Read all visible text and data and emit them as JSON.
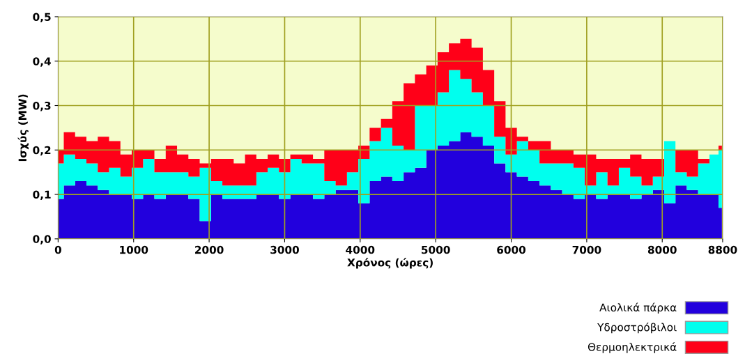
{
  "chart_data": {
    "type": "area",
    "stacked": true,
    "xlabel": "Χρόνος (ώρες)",
    "ylabel": "Ισχύς (MW)",
    "x": [
      0,
      150,
      300,
      450,
      600,
      750,
      900,
      1050,
      1200,
      1350,
      1500,
      1650,
      1800,
      1950,
      2100,
      2250,
      2400,
      2550,
      2700,
      2850,
      3000,
      3150,
      3300,
      3450,
      3600,
      3750,
      3900,
      4050,
      4200,
      4350,
      4500,
      4650,
      4800,
      4950,
      5100,
      5250,
      5400,
      5550,
      5700,
      5850,
      6000,
      6150,
      6300,
      6450,
      6600,
      6750,
      6900,
      7050,
      7200,
      7350,
      7500,
      7650,
      7800,
      7950,
      8100,
      8250,
      8400,
      8550,
      8700,
      8790
    ],
    "series": [
      {
        "name": "Αιολικά πάρκα",
        "color": "#2200dd",
        "values": [
          0.09,
          0.12,
          0.13,
          0.12,
          0.11,
          0.1,
          0.1,
          0.09,
          0.1,
          0.09,
          0.1,
          0.1,
          0.09,
          0.04,
          0.1,
          0.09,
          0.09,
          0.09,
          0.1,
          0.1,
          0.09,
          0.1,
          0.1,
          0.09,
          0.1,
          0.11,
          0.11,
          0.08,
          0.13,
          0.14,
          0.13,
          0.15,
          0.16,
          0.2,
          0.21,
          0.22,
          0.24,
          0.23,
          0.21,
          0.17,
          0.15,
          0.14,
          0.13,
          0.12,
          0.11,
          0.1,
          0.09,
          0.1,
          0.09,
          0.1,
          0.1,
          0.09,
          0.1,
          0.11,
          0.08,
          0.12,
          0.11,
          0.1,
          0.1,
          0.07
        ]
      },
      {
        "name": "Υδροστρόβιλοι",
        "color": "#00ffee",
        "values": [
          0.08,
          0.07,
          0.05,
          0.05,
          0.04,
          0.06,
          0.04,
          0.07,
          0.08,
          0.06,
          0.05,
          0.05,
          0.05,
          0.12,
          0.03,
          0.03,
          0.03,
          0.03,
          0.05,
          0.06,
          0.06,
          0.08,
          0.07,
          0.08,
          0.03,
          0.01,
          0.04,
          0.1,
          0.09,
          0.11,
          0.08,
          0.05,
          0.14,
          0.1,
          0.12,
          0.16,
          0.12,
          0.1,
          0.09,
          0.06,
          0.04,
          0.08,
          0.07,
          0.05,
          0.06,
          0.07,
          0.07,
          0.02,
          0.06,
          0.02,
          0.06,
          0.05,
          0.02,
          0.03,
          0.14,
          0.03,
          0.03,
          0.07,
          0.09,
          0.13
        ]
      },
      {
        "name": "Θερμοηλεκτρικά",
        "color": "#ff0018",
        "values": [
          0.03,
          0.05,
          0.05,
          0.05,
          0.08,
          0.06,
          0.05,
          0.04,
          0.02,
          0.03,
          0.06,
          0.04,
          0.04,
          0.01,
          0.05,
          0.06,
          0.05,
          0.07,
          0.03,
          0.03,
          0.03,
          0.01,
          0.02,
          0.01,
          0.07,
          0.08,
          0.05,
          0.03,
          0.03,
          0.02,
          0.1,
          0.15,
          0.07,
          0.09,
          0.09,
          0.06,
          0.09,
          0.1,
          0.08,
          0.08,
          0.06,
          0.01,
          0.02,
          0.05,
          0.03,
          0.03,
          0.03,
          0.07,
          0.03,
          0.06,
          0.02,
          0.05,
          0.06,
          0.04,
          0,
          0.05,
          0.06,
          0.01,
          0,
          0.01
        ]
      }
    ],
    "xlim": [
      0,
      8800
    ],
    "xticks": [
      0,
      1000,
      2000,
      3000,
      4000,
      5000,
      6000,
      7000,
      8000,
      8800
    ],
    "ylim": [
      0,
      0.5
    ],
    "yticks": [
      {
        "value": 0,
        "label": "0,0"
      },
      {
        "value": 0.1,
        "label": "0,1"
      },
      {
        "value": 0.2,
        "label": "0,2"
      },
      {
        "value": 0.3,
        "label": "0,3"
      },
      {
        "value": 0.4,
        "label": "0,4"
      },
      {
        "value": 0.5,
        "label": "0,5"
      }
    ],
    "grid": true,
    "legend": "bottom right"
  }
}
